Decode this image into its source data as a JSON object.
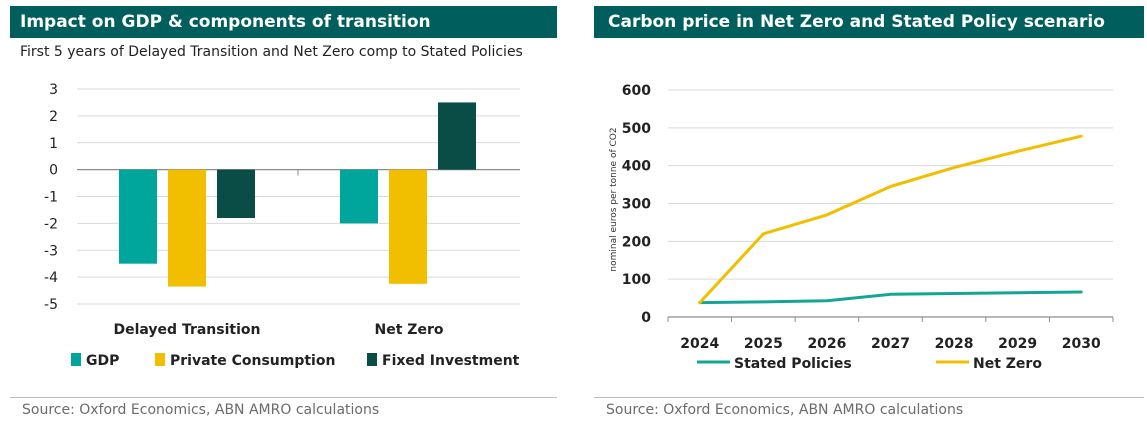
{
  "left": {
    "title": "Impact on GDP & components of transition",
    "subtitle": "First 5 years of Delayed Transition and Net Zero comp to Stated Policies",
    "source": "Source: Oxford Economics, ABN AMRO calculations"
  },
  "right": {
    "title": "Carbon price in Net Zero and Stated Policy scenario",
    "source": "Source: Oxford Economics, ABN AMRO calculations"
  },
  "chart_data": [
    {
      "type": "bar",
      "categories": [
        "Delayed Transition",
        "Net Zero"
      ],
      "series": [
        {
          "name": "GDP",
          "values": [
            -3.5,
            -2.0
          ],
          "color": "#00A69C"
        },
        {
          "name": "Private Consumption",
          "values": [
            -4.35,
            -4.25
          ],
          "color": "#F2BE00"
        },
        {
          "name": "Fixed Investment",
          "values": [
            -1.8,
            2.5
          ],
          "color": "#0A4D47"
        }
      ],
      "yticks": [
        "3",
        "2",
        "1",
        "0",
        "-1",
        "-2",
        "-3",
        "-4",
        "-5"
      ],
      "ylim": [
        -5,
        3
      ],
      "grid": true,
      "legend_position": "bottom"
    },
    {
      "type": "line",
      "x": [
        "2024",
        "2025",
        "2026",
        "2027",
        "2028",
        "2029",
        "2030"
      ],
      "series": [
        {
          "name": "Stated Policies",
          "values": [
            38,
            40,
            43,
            60,
            62,
            64,
            66
          ],
          "color": "#15A597"
        },
        {
          "name": "Net Zero",
          "values": [
            38,
            220,
            270,
            345,
            395,
            438,
            478
          ],
          "color": "#F2BE00"
        }
      ],
      "ylabel": "nominal euros per tonne of CO2",
      "yticks": [
        "600",
        "500",
        "400",
        "300",
        "200",
        "100",
        "0"
      ],
      "ylim": [
        0,
        600
      ],
      "grid": true,
      "legend_position": "bottom"
    }
  ]
}
